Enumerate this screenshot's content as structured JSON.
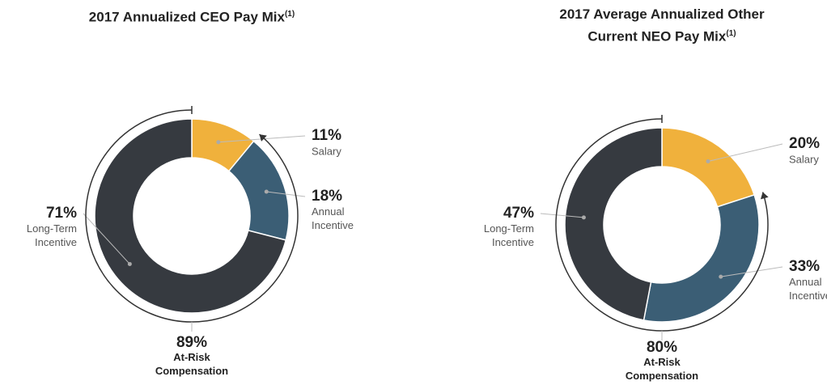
{
  "chart_data": [
    {
      "type": "donut",
      "title": "2017 Annualized CEO Pay Mix",
      "title_note": "(1)",
      "categories": [
        "Salary",
        "Annual Incentive",
        "Long-Term Incentive"
      ],
      "values": [
        11,
        18,
        71
      ],
      "value_labels": [
        "11%",
        "18%",
        "71%"
      ],
      "colors": [
        "#f0b13c",
        "#3b5e75",
        "#363a40"
      ],
      "bracket": {
        "value": 89,
        "label": "89%",
        "text": "At-Risk Compensation"
      }
    },
    {
      "type": "donut",
      "title": "2017 Average Annualized Other Current NEO Pay Mix",
      "title_note": "(1)",
      "categories": [
        "Salary",
        "Annual Incentive",
        "Long-Term Incentive"
      ],
      "values": [
        20,
        33,
        47
      ],
      "value_labels": [
        "20%",
        "33%",
        "47%"
      ],
      "colors": [
        "#f0b13c",
        "#3b5e75",
        "#363a40"
      ],
      "bracket": {
        "value": 80,
        "label": "80%",
        "text": "At-Risk Compensation"
      }
    }
  ]
}
